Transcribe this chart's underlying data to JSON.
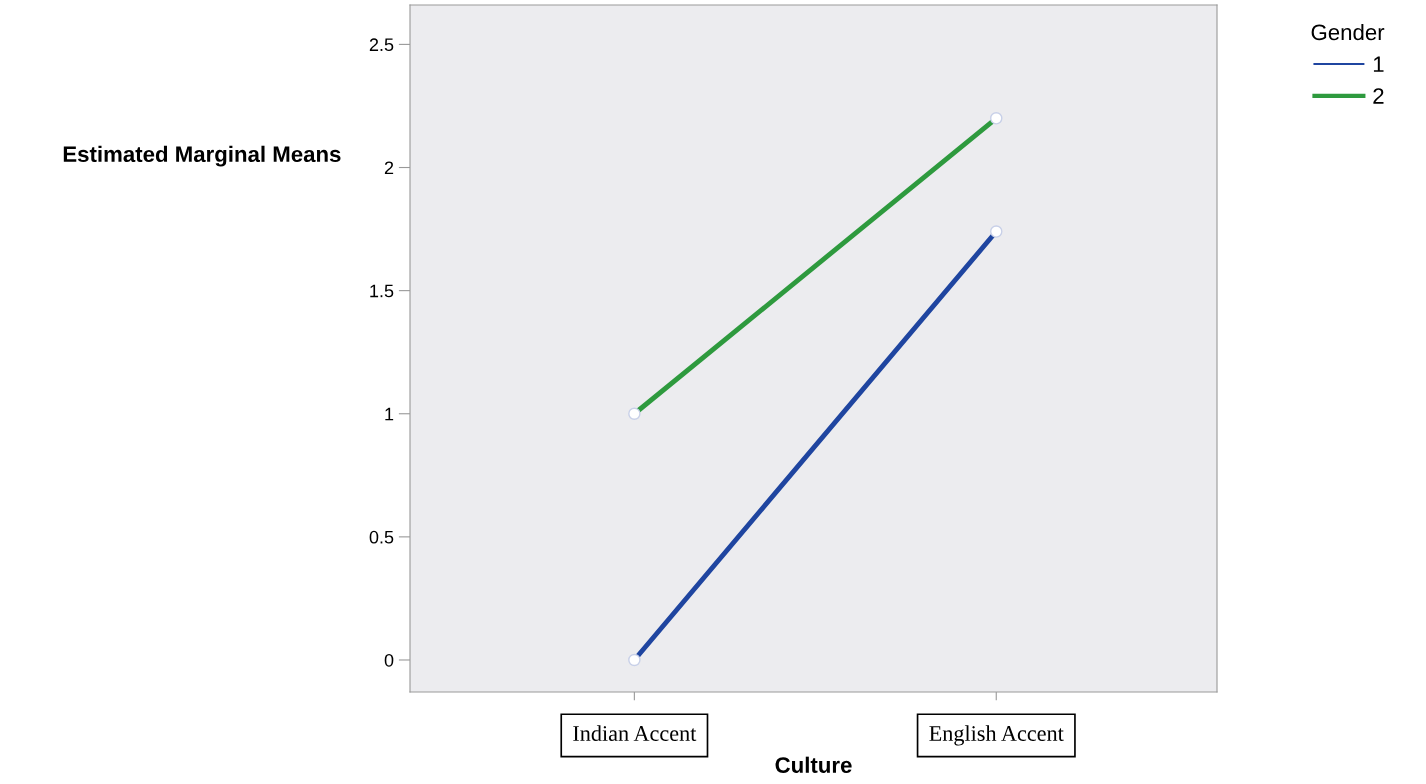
{
  "chart_data": {
    "type": "line",
    "xlabel": "Culture",
    "ylabel": "Estimated Marginal Means",
    "legend_title": "Gender",
    "categories": [
      "Indian Accent",
      "English Accent"
    ],
    "series": [
      {
        "name": "1",
        "color": "#1f45a0",
        "values": [
          0,
          1.74
        ]
      },
      {
        "name": "2",
        "color": "#2e9a3e",
        "values": [
          1.0,
          2.2
        ]
      }
    ],
    "ylim": [
      -0.13,
      2.66
    ],
    "yticks": [
      0,
      0.5,
      1,
      1.5,
      2,
      2.5
    ],
    "marker": "circle",
    "line_style": "solid",
    "legend": "top right",
    "grid": false
  }
}
